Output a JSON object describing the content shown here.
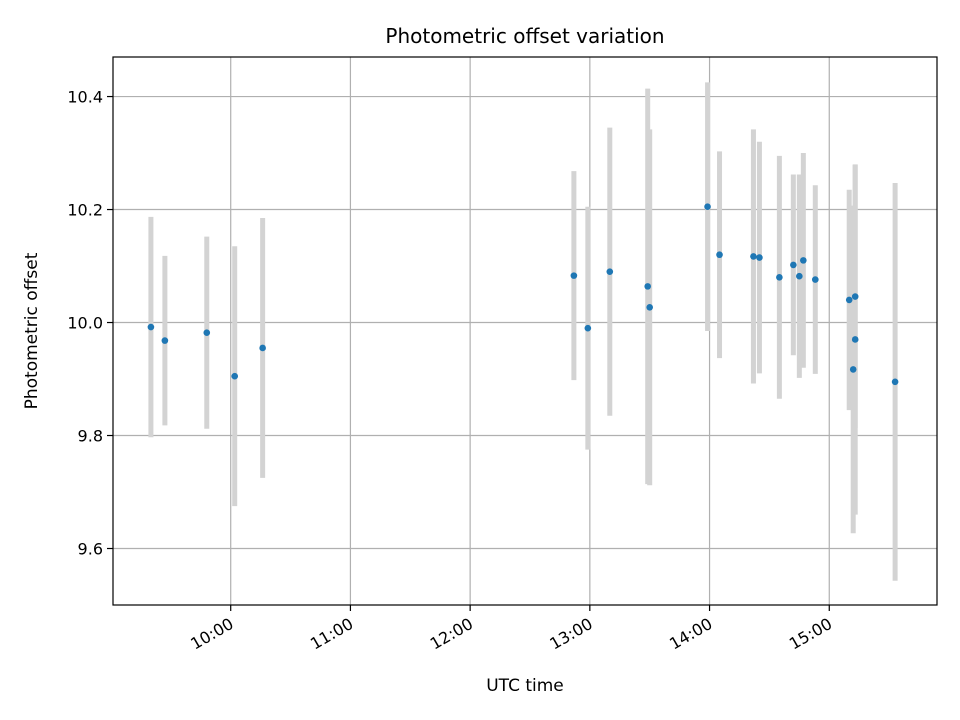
{
  "chart_data": {
    "type": "scatter",
    "title": "Photometric offset variation",
    "xlabel": "UTC time",
    "ylabel": "Photometric offset",
    "xlim": [
      "09:01",
      "15:54"
    ],
    "ylim": [
      9.5,
      10.47
    ],
    "x_ticks": [
      "10:00",
      "11:00",
      "12:00",
      "13:00",
      "14:00",
      "15:00"
    ],
    "y_ticks": [
      9.6,
      9.8,
      10.0,
      10.2,
      10.4
    ],
    "y_tick_labels": [
      "9.6",
      "9.8",
      "10.0",
      "10.2",
      "10.4"
    ],
    "grid": true,
    "error_bar_color": "#d3d3d3",
    "point_color": "#1f77b4",
    "points": [
      {
        "time": "09:20",
        "value": 9.992,
        "error": 0.195
      },
      {
        "time": "09:27",
        "value": 9.968,
        "error": 0.15
      },
      {
        "time": "09:48",
        "value": 9.982,
        "error": 0.17
      },
      {
        "time": "10:02",
        "value": 9.905,
        "error": 0.23
      },
      {
        "time": "10:16",
        "value": 9.955,
        "error": 0.23
      },
      {
        "time": "12:52",
        "value": 10.083,
        "error": 0.185
      },
      {
        "time": "12:59",
        "value": 9.99,
        "error": 0.215
      },
      {
        "time": "13:10",
        "value": 10.09,
        "error": 0.255
      },
      {
        "time": "13:29",
        "value": 10.064,
        "error": 0.35
      },
      {
        "time": "13:30",
        "value": 10.027,
        "error": 0.315
      },
      {
        "time": "13:59",
        "value": 10.205,
        "error": 0.22
      },
      {
        "time": "14:05",
        "value": 10.12,
        "error": 0.183
      },
      {
        "time": "14:22",
        "value": 10.117,
        "error": 0.225
      },
      {
        "time": "14:25",
        "value": 10.115,
        "error": 0.205
      },
      {
        "time": "14:35",
        "value": 10.08,
        "error": 0.215
      },
      {
        "time": "14:42",
        "value": 10.102,
        "error": 0.16
      },
      {
        "time": "14:45",
        "value": 10.082,
        "error": 0.18
      },
      {
        "time": "14:47",
        "value": 10.11,
        "error": 0.19
      },
      {
        "time": "14:53",
        "value": 10.076,
        "error": 0.167
      },
      {
        "time": "15:10",
        "value": 10.04,
        "error": 0.195
      },
      {
        "time": "15:12",
        "value": 9.917,
        "error": 0.29
      },
      {
        "time": "15:13",
        "value": 9.97,
        "error": 0.31
      },
      {
        "time": "15:13",
        "value": 10.046,
        "error": 0.233
      },
      {
        "time": "15:33",
        "value": 9.895,
        "error": 0.352
      }
    ]
  }
}
